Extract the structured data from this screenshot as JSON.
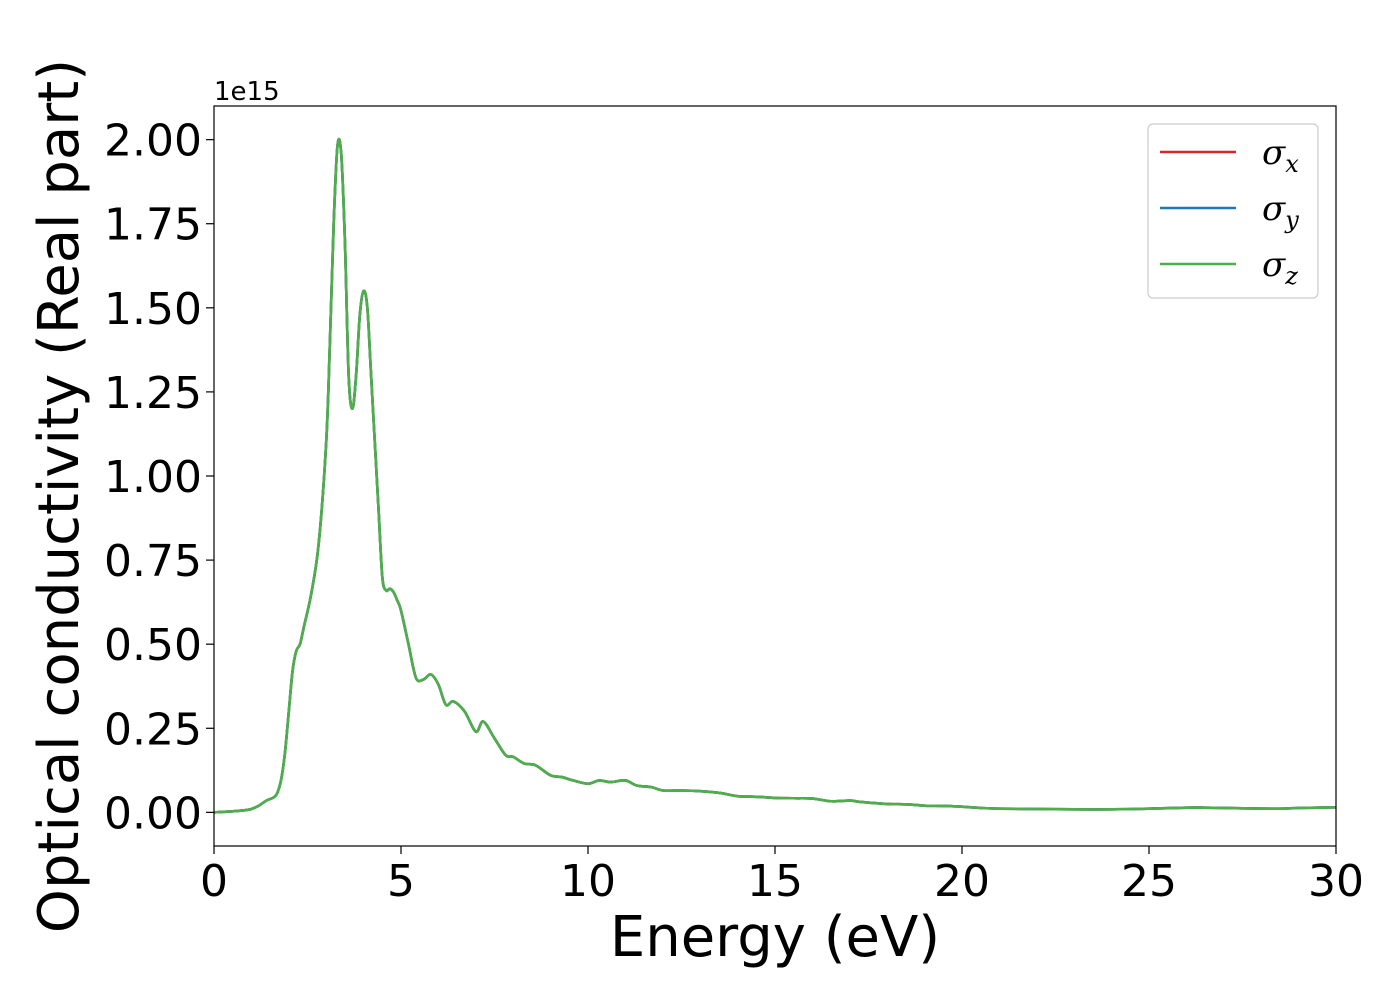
{
  "chart_data": {
    "type": "line",
    "xlabel": "Energy (eV)",
    "ylabel": "Optical conductivity (Real part)",
    "y_offset_label": "1e15",
    "y_scale_factor": 1000000000000000.0,
    "xlim": [
      0,
      30
    ],
    "ylim": [
      -0.1,
      2.1
    ],
    "xticks": [
      0,
      5,
      10,
      15,
      20,
      25,
      30
    ],
    "xtick_labels": [
      "0",
      "5",
      "10",
      "15",
      "20",
      "25",
      "30"
    ],
    "yticks": [
      0.0,
      0.25,
      0.5,
      0.75,
      1.0,
      1.25,
      1.5,
      1.75,
      2.0
    ],
    "ytick_labels": [
      "0.00",
      "0.25",
      "0.50",
      "0.75",
      "1.00",
      "1.25",
      "1.50",
      "1.75",
      "2.00"
    ],
    "grid": false,
    "legend_position": "top-right",
    "x": [
      0,
      0.5,
      0.8,
      1.0,
      1.2,
      1.4,
      1.6,
      1.7,
      1.8,
      1.9,
      2.0,
      2.1,
      2.2,
      2.3,
      2.4,
      2.6,
      2.8,
      3.0,
      3.1,
      3.2,
      3.3,
      3.4,
      3.5,
      3.6,
      3.7,
      3.8,
      3.9,
      4.0,
      4.1,
      4.2,
      4.3,
      4.4,
      4.5,
      4.6,
      4.7,
      4.8,
      4.9,
      5.0,
      5.2,
      5.4,
      5.6,
      5.8,
      6.0,
      6.2,
      6.4,
      6.7,
      7.0,
      7.2,
      7.5,
      7.8,
      8.0,
      8.3,
      8.6,
      9.0,
      9.3,
      9.6,
      10.0,
      10.3,
      10.6,
      11.0,
      11.3,
      11.7,
      12.0,
      12.5,
      13.0,
      13.5,
      14.0,
      14.3,
      14.6,
      15.0,
      15.5,
      16.0,
      16.5,
      17.0,
      17.3,
      18.0,
      18.5,
      19.0,
      19.5,
      20.0,
      20.5,
      21.0,
      22.0,
      23.0,
      24.0,
      25.0,
      26.0,
      26.5,
      27.5,
      28.5,
      29.0,
      30.0
    ],
    "series": [
      {
        "name": "σx",
        "color": "#d62728",
        "values": [
          0.0,
          0.003,
          0.006,
          0.01,
          0.02,
          0.035,
          0.045,
          0.06,
          0.1,
          0.18,
          0.3,
          0.42,
          0.48,
          0.5,
          0.55,
          0.65,
          0.8,
          1.1,
          1.4,
          1.75,
          1.98,
          1.96,
          1.7,
          1.3,
          1.2,
          1.3,
          1.48,
          1.55,
          1.5,
          1.3,
          1.1,
          0.9,
          0.7,
          0.66,
          0.665,
          0.655,
          0.63,
          0.6,
          0.5,
          0.4,
          0.395,
          0.41,
          0.38,
          0.32,
          0.33,
          0.3,
          0.24,
          0.27,
          0.22,
          0.17,
          0.165,
          0.145,
          0.14,
          0.11,
          0.105,
          0.095,
          0.085,
          0.095,
          0.09,
          0.095,
          0.08,
          0.075,
          0.065,
          0.065,
          0.063,
          0.058,
          0.048,
          0.047,
          0.046,
          0.043,
          0.042,
          0.041,
          0.033,
          0.035,
          0.031,
          0.025,
          0.024,
          0.02,
          0.019,
          0.017,
          0.013,
          0.011,
          0.01,
          0.009,
          0.009,
          0.011,
          0.014,
          0.014,
          0.012,
          0.011,
          0.013,
          0.015
        ]
      },
      {
        "name": "σy",
        "color": "#1f77b4",
        "values": [
          0.0,
          0.003,
          0.006,
          0.01,
          0.02,
          0.035,
          0.045,
          0.06,
          0.1,
          0.18,
          0.3,
          0.42,
          0.48,
          0.5,
          0.55,
          0.65,
          0.8,
          1.1,
          1.4,
          1.75,
          1.98,
          1.96,
          1.7,
          1.3,
          1.2,
          1.3,
          1.48,
          1.55,
          1.5,
          1.3,
          1.1,
          0.9,
          0.7,
          0.66,
          0.665,
          0.655,
          0.63,
          0.6,
          0.5,
          0.4,
          0.395,
          0.41,
          0.38,
          0.32,
          0.33,
          0.3,
          0.24,
          0.27,
          0.22,
          0.17,
          0.165,
          0.145,
          0.14,
          0.11,
          0.105,
          0.095,
          0.085,
          0.095,
          0.09,
          0.095,
          0.08,
          0.075,
          0.065,
          0.065,
          0.063,
          0.058,
          0.048,
          0.047,
          0.046,
          0.043,
          0.042,
          0.041,
          0.033,
          0.035,
          0.031,
          0.025,
          0.024,
          0.02,
          0.019,
          0.017,
          0.013,
          0.011,
          0.01,
          0.009,
          0.009,
          0.011,
          0.014,
          0.014,
          0.012,
          0.011,
          0.013,
          0.015
        ]
      },
      {
        "name": "σz",
        "color": "#4daf4a",
        "values": [
          0.0,
          0.003,
          0.006,
          0.01,
          0.02,
          0.035,
          0.045,
          0.06,
          0.1,
          0.18,
          0.3,
          0.42,
          0.48,
          0.5,
          0.55,
          0.65,
          0.8,
          1.1,
          1.4,
          1.75,
          1.98,
          1.96,
          1.7,
          1.3,
          1.2,
          1.3,
          1.48,
          1.55,
          1.5,
          1.3,
          1.1,
          0.9,
          0.7,
          0.66,
          0.665,
          0.655,
          0.63,
          0.6,
          0.5,
          0.4,
          0.395,
          0.41,
          0.38,
          0.32,
          0.33,
          0.3,
          0.24,
          0.27,
          0.22,
          0.17,
          0.165,
          0.145,
          0.14,
          0.11,
          0.105,
          0.095,
          0.085,
          0.095,
          0.09,
          0.095,
          0.08,
          0.075,
          0.065,
          0.065,
          0.063,
          0.058,
          0.048,
          0.047,
          0.046,
          0.043,
          0.042,
          0.041,
          0.033,
          0.035,
          0.031,
          0.025,
          0.024,
          0.02,
          0.019,
          0.017,
          0.013,
          0.011,
          0.01,
          0.009,
          0.009,
          0.011,
          0.014,
          0.014,
          0.012,
          0.011,
          0.013,
          0.015
        ]
      }
    ],
    "legend": [
      {
        "symbol": "σ",
        "subscript": "x",
        "color": "#d62728"
      },
      {
        "symbol": "σ",
        "subscript": "y",
        "color": "#1f77b4"
      },
      {
        "symbol": "σ",
        "subscript": "z",
        "color": "#4daf4a"
      }
    ]
  }
}
